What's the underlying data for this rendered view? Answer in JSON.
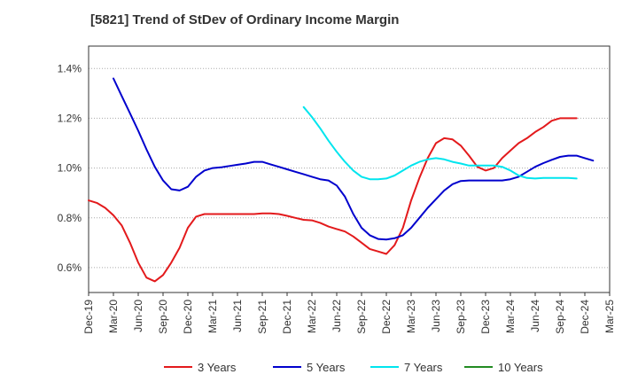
{
  "chart_data": {
    "type": "line",
    "title": "[5821]  Trend of StDev of Ordinary Income Margin",
    "xlabel": "",
    "ylabel": "",
    "x_ticks": [
      "Dec-19",
      "Mar-20",
      "Jun-20",
      "Sep-20",
      "Dec-20",
      "Mar-21",
      "Jun-21",
      "Sep-21",
      "Dec-21",
      "Mar-22",
      "Jun-22",
      "Sep-22",
      "Dec-22",
      "Mar-23",
      "Jun-23",
      "Sep-23",
      "Dec-23",
      "Mar-24",
      "Jun-24",
      "Sep-24",
      "Dec-24",
      "Mar-25"
    ],
    "y_ticks": [
      {
        "v": 0.6,
        "label": "0.6%"
      },
      {
        "v": 0.8,
        "label": "0.8%"
      },
      {
        "v": 1.0,
        "label": "1.0%"
      },
      {
        "v": 1.2,
        "label": "1.2%"
      },
      {
        "v": 1.4,
        "label": "1.4%"
      }
    ],
    "ylim": [
      0.5,
      1.49
    ],
    "grid": "horizontal dotted",
    "legend_position": "bottom",
    "series": [
      {
        "name": "3 Years",
        "color": "#e31a1c",
        "start": 0,
        "values": [
          0.87,
          0.86,
          0.84,
          0.81,
          0.77,
          0.7,
          0.62,
          0.56,
          0.545,
          0.57,
          0.62,
          0.68,
          0.76,
          0.805,
          0.815,
          0.815,
          0.815,
          0.815,
          0.815,
          0.815,
          0.815,
          0.818,
          0.818,
          0.815,
          0.808,
          0.8,
          0.792,
          0.79,
          0.78,
          0.765,
          0.755,
          0.745,
          0.725,
          0.7,
          0.675,
          0.665,
          0.655,
          0.69,
          0.76,
          0.87,
          0.96,
          1.04,
          1.1,
          1.12,
          1.115,
          1.09,
          1.05,
          1.005,
          0.99,
          1.0,
          1.04,
          1.07,
          1.1,
          1.12,
          1.145,
          1.165,
          1.19,
          1.2,
          1.2,
          1.2
        ]
      },
      {
        "name": "5 Years",
        "color": "#0000cd",
        "start": 3,
        "values": [
          1.36,
          1.29,
          1.22,
          1.15,
          1.075,
          1.005,
          0.95,
          0.915,
          0.91,
          0.925,
          0.965,
          0.99,
          1.0,
          1.003,
          1.008,
          1.013,
          1.018,
          1.025,
          1.025,
          1.015,
          1.005,
          0.995,
          0.985,
          0.975,
          0.965,
          0.955,
          0.95,
          0.93,
          0.885,
          0.815,
          0.76,
          0.73,
          0.715,
          0.713,
          0.718,
          0.73,
          0.76,
          0.8,
          0.84,
          0.875,
          0.91,
          0.935,
          0.948,
          0.95,
          0.95,
          0.95,
          0.95,
          0.95,
          0.955,
          0.965,
          0.985,
          1.005,
          1.02,
          1.033,
          1.045,
          1.05,
          1.05,
          1.04,
          1.03
        ]
      },
      {
        "name": "7 Years",
        "color": "#00e5ee",
        "start": 26,
        "values": [
          1.245,
          1.205,
          1.16,
          1.11,
          1.065,
          1.025,
          0.99,
          0.965,
          0.955,
          0.955,
          0.958,
          0.97,
          0.99,
          1.01,
          1.025,
          1.035,
          1.04,
          1.035,
          1.025,
          1.018,
          1.01,
          1.01,
          1.01,
          1.01,
          1.005,
          0.99,
          0.97,
          0.96,
          0.958,
          0.96,
          0.96,
          0.96,
          0.96,
          0.958
        ]
      },
      {
        "name": "10 Years",
        "color": "#228b22",
        "start": 0,
        "values": []
      }
    ]
  }
}
